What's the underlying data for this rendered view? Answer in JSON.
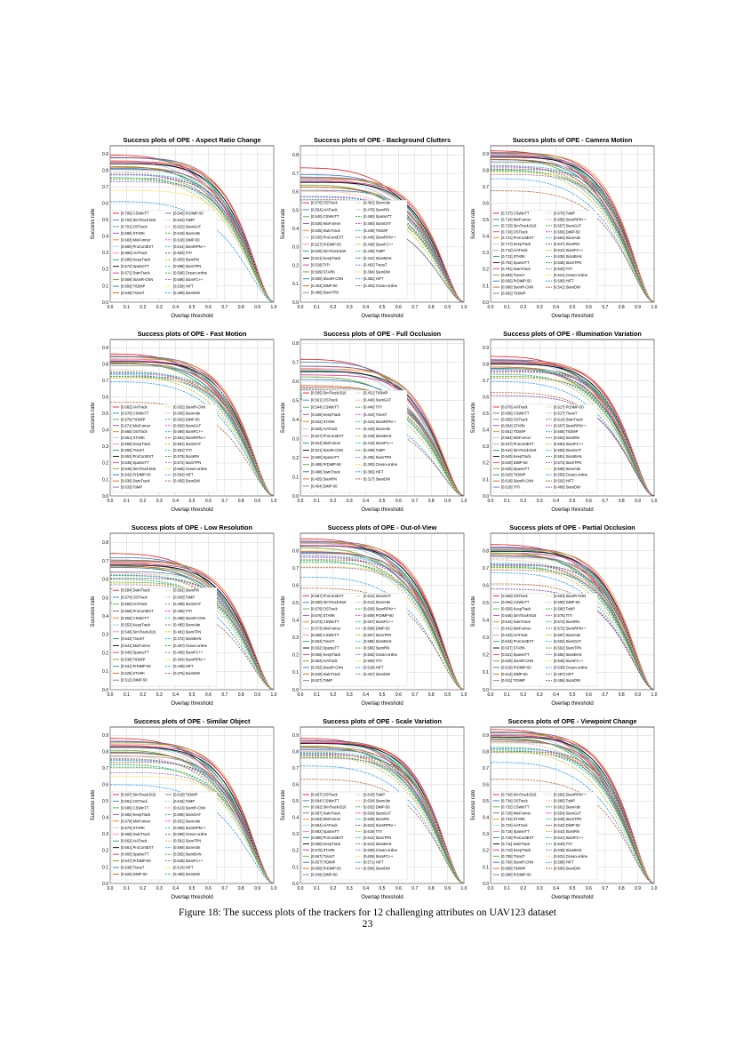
{
  "caption": "Figure 18: The success plots of the trackers for 12 challenging attributes on UAV123 dataset",
  "page_number": "23",
  "chart_data": [
    {
      "type": "line",
      "title": "Success plots of OPE - Aspect Ratio Change",
      "xlabel": "Overlap threshold",
      "ylabel": "Success rate",
      "xlim": [
        0,
        1
      ],
      "ylim": [
        0,
        0.95
      ],
      "xticks": [
        "0.0",
        "0.1",
        "0.2",
        "0.3",
        "0.4",
        "0.5",
        "0.6",
        "0.7",
        "0.8",
        "0.9",
        "1.0"
      ],
      "yticks": [
        "0.0",
        "0.1",
        "0.2",
        "0.3",
        "0.4",
        "0.5",
        "0.6",
        "0.7",
        "0.8",
        "0.9"
      ],
      "grid": true,
      "legend_position": "lower-left",
      "legend": [
        "[0.706] CSWinTT",
        "[0.702] SimTrack-B16",
        "[0.701] OSTrack",
        "[0.695] STARK",
        "[0.683] MixFormer",
        "[0.680] ProContEXT",
        "[0.680] AiATrack",
        "[0.680] KeepTrack",
        "[0.672] SparseTT",
        "[0.671] SwinTrack",
        "[0.659] SiamR-CNN",
        "[0.650] TrDiMP",
        "[0.648] TransT",
        "[0.645] PrDiMP-50",
        "[0.632] ToMP",
        "[0.622] SiamGAT",
        "[0.619] SiamAttn",
        "[0.618] DiMP-50",
        "[0.614] SiamRPN++",
        "[0.603] TrTr",
        "[0.603] SiamRN",
        "[0.598] SiamTPN",
        "[0.596] Ocean-online",
        "[0.586] SiamFC++",
        "[0.536] HiFT",
        "[0.489] SiamDW"
      ]
    },
    {
      "type": "line",
      "title": "Success plots of OPE - Background Clutters",
      "xlabel": "Overlap threshold",
      "ylabel": "Success rate",
      "xlim": [
        0,
        1
      ],
      "ylim": [
        0,
        0.85
      ],
      "xticks": [
        "0.0",
        "0.1",
        "0.2",
        "0.3",
        "0.4",
        "0.5",
        "0.6",
        "0.7",
        "0.8",
        "0.9",
        "1.0"
      ],
      "yticks": [
        "0.0",
        "0.1",
        "0.2",
        "0.3",
        "0.4",
        "0.5",
        "0.6",
        "0.7",
        "0.8"
      ],
      "grid": true,
      "legend_position": "lower-left",
      "legend": [
        "[0.576] OSTrack",
        "[0.554] AiATrack",
        "[0.540] CSWinTT",
        "[0.536] MixFormer",
        "[0.535] SwinTrack",
        "[0.530] ProContEXT",
        "[0.527] PrDiMP-50",
        "[0.525] SimTrack-B16",
        "[0.521] KeepTrack",
        "[0.518] TrTr",
        "[0.509] STARK",
        "[0.500] SiamR-CNN",
        "[0.493] DiMP-50",
        "[0.486] SiamTPN",
        "[0.481] SiamAttn",
        "[0.478] SiamRN",
        "[0.460] SparseTT",
        "[0.460] SiamGAT",
        "[0.449] TrDiMP",
        "[0.446] SiamRPN++",
        "[0.438] SiamFC++",
        "[0.436] ToMP",
        "[0.431] SiamBAN",
        "[0.402] TransT",
        "[0.384] SiamDW",
        "[0.382] HiFT",
        "[0.363] Ocean-online"
      ]
    },
    {
      "type": "line",
      "title": "Success plots of OPE - Camera Motion",
      "xlabel": "Overlap threshold",
      "ylabel": "Success rate",
      "xlim": [
        0,
        1
      ],
      "ylim": [
        0,
        0.95
      ],
      "xticks": [
        "0.0",
        "0.1",
        "0.2",
        "0.3",
        "0.4",
        "0.5",
        "0.6",
        "0.7",
        "0.8",
        "0.9",
        "1.0"
      ],
      "yticks": [
        "0.0",
        "0.1",
        "0.2",
        "0.3",
        "0.4",
        "0.5",
        "0.6",
        "0.7",
        "0.8",
        "0.9"
      ],
      "grid": true,
      "legend_position": "lower-left",
      "legend": [
        "[0.727] CSWinTT",
        "[0.724] MixFormer",
        "[0.723] SimTrack-B16",
        "[0.720] OSTrack",
        "[0.721] ProContEXT",
        "[0.717] KeepTrack",
        "[0.712] AiATrack",
        "[0.712] STARK",
        "[0.704] SparseTT",
        "[0.701] SwinTrack",
        "[0.693] TransT",
        "[0.692] PrDiMP-50",
        "[0.686] SiamR-CNN",
        "[0.682] TrDiMP",
        "[0.676] ToMP",
        "[0.658] SiamRPN++",
        "[0.657] SiamGAT",
        "[0.656] DiMP-50",
        "[0.654] SiamAttn",
        "[0.647] SiamRN",
        "[0.641] SiamFC++",
        "[0.636] SiamBAN",
        "[0.636] SiamTPN",
        "[0.620] TrTr",
        "[0.621] Ocean-online",
        "[0.600] HiFT",
        "[0.541] SiamDW"
      ]
    },
    {
      "type": "line",
      "title": "Success plots of OPE - Fast Motion",
      "xlabel": "Overlap threshold",
      "ylabel": "Success rate",
      "xlim": [
        0,
        1
      ],
      "ylim": [
        0,
        0.95
      ],
      "xticks": [
        "0.0",
        "0.1",
        "0.2",
        "0.3",
        "0.4",
        "0.5",
        "0.6",
        "0.7",
        "0.8",
        "0.9",
        "1.0"
      ],
      "yticks": [
        "0.0",
        "0.1",
        "0.2",
        "0.3",
        "0.4",
        "0.5",
        "0.6",
        "0.7",
        "0.8",
        "0.9"
      ],
      "grid": true,
      "legend_position": "lower-left",
      "legend": [
        "[0.682] AiATrack",
        "[0.676] CSWinTT",
        "[0.676] TrDiMP",
        "[0.671] MixFormer",
        "[0.665] OSTrack",
        "[0.661] STARK",
        "[0.658] KeepTrack",
        "[0.656] TransT",
        "[0.652] ProContEXT",
        "[0.648] SparseTT",
        "[0.646] SimTrack-B16",
        "[0.642] PrDiMP-50",
        "[0.636] SwinTrack",
        "[0.633] ToMP",
        "[0.632] SiamR-CNN",
        "[0.605] SiamAttn",
        "[0.602] DiMP-50",
        "[0.593] SiamGAT",
        "[0.590] SiamFC++",
        "[0.581] SiamRPN++",
        "[0.581] SiamGAT",
        "[0.581] TrTr",
        "[0.579] SiamRN",
        "[0.572] SiamTPN",
        "[0.565] Ocean-online",
        "[0.554] HiFT",
        "[0.456] SiamDW"
      ]
    },
    {
      "type": "line",
      "title": "Success plots of OPE - Full Occlusion",
      "xlabel": "Overlap threshold",
      "ylabel": "Success rate",
      "xlim": [
        0,
        1
      ],
      "ylim": [
        0,
        0.82
      ],
      "xticks": [
        "0.0",
        "0.1",
        "0.2",
        "0.3",
        "0.4",
        "0.5",
        "0.6",
        "0.7",
        "0.8",
        "0.9",
        "1.0"
      ],
      "yticks": [
        "0.0",
        "0.1",
        "0.2",
        "0.3",
        "0.4",
        "0.5",
        "0.6",
        "0.7",
        "0.8"
      ],
      "grid": true,
      "legend_position": "lower-left",
      "legend": [
        "[0.565] SimTrack-B16",
        "[0.561] OSTrack",
        "[0.544] CSWinTT",
        "[0.536] KeepTrack",
        "[0.532] STARK",
        "[0.529] AiATrack",
        "[0.527] ProContEXT",
        "[0.524] MixFormer",
        "[0.521] SiamR-CNN",
        "[0.500] SparseTT",
        "[0.499] PrDiMP-50",
        "[0.488] SwinTrack",
        "[0.455] SiamRN",
        "[0.454] DiMP-50",
        "[0.451] TrDiMP",
        "[0.449] SiamGAT",
        "[0.446] TrTr",
        "[0.444] TransT",
        "[0.424] SiamRPN++",
        "[0.420] SiamAttn",
        "[0.418] SiamBAN",
        "[0.416] SiamFC++",
        "[0.409] ToMP",
        "[0.405] SiamTPN",
        "[0.393] Ocean-online",
        "[0.356] HiFT",
        "[0.317] SiamDW"
      ]
    },
    {
      "type": "line",
      "title": "Success plots of OPE - Illumination Variation",
      "xlabel": "Overlap threshold",
      "ylabel": "Success rate",
      "xlim": [
        0,
        1
      ],
      "ylim": [
        0,
        0.95
      ],
      "xticks": [
        "0.0",
        "0.1",
        "0.2",
        "0.3",
        "0.4",
        "0.5",
        "0.6",
        "0.7",
        "0.8",
        "0.9",
        "1.0"
      ],
      "yticks": [
        "0.0",
        "0.1",
        "0.2",
        "0.3",
        "0.4",
        "0.5",
        "0.6",
        "0.7",
        "0.8",
        "0.9"
      ],
      "grid": true,
      "legend_position": "lower-left",
      "legend": [
        "[0.670] AiATrack",
        "[0.658] CSWinTT",
        "[0.655] OSTrack",
        "[0.654] STARK",
        "[0.651] TrDiMP",
        "[0.654] MixFormer",
        "[0.647] ProContEXT",
        "[0.644] SimTrack-B16",
        "[0.640] KeepTrack",
        "[0.640] DiMP-50",
        "[0.626] SparseTT",
        "[0.620] TrDiMP",
        "[0.618] SiamR-CNN",
        "[0.618] TrTr",
        "[0.617] PrDiMP-50",
        "[0.617] TransT",
        "[0.614] SwinTrack",
        "[0.607] SiamRPN++",
        "[0.606] TrDiMP",
        "[0.602] SiamRN",
        "[0.593] SiamFC++",
        "[0.583] SiamGAT",
        "[0.581] SiamBAN",
        "[0.573] SiamTPN",
        "[0.568] SiamAttn",
        "[0.555] Ocean-online",
        "[0.502] HiFT",
        "[0.480] SiamDW"
      ]
    },
    {
      "type": "line",
      "title": "Success plots of OPE - Low Resolution",
      "xlabel": "Overlap threshold",
      "ylabel": "Success rate",
      "xlim": [
        0,
        1
      ],
      "ylim": [
        0,
        0.85
      ],
      "xticks": [
        "0.0",
        "0.1",
        "0.2",
        "0.3",
        "0.4",
        "0.5",
        "0.6",
        "0.7",
        "0.8",
        "0.9",
        "1.0"
      ],
      "yticks": [
        "0.0",
        "0.1",
        "0.2",
        "0.3",
        "0.4",
        "0.5",
        "0.6",
        "0.7",
        "0.8"
      ],
      "grid": true,
      "legend_position": "lower-left",
      "legend": [
        "[0.584] SwinTrack",
        "[0.574] OSTrack",
        "[0.560] AiATrack",
        "[0.556] ProContEXT",
        "[0.556] CSWinTT",
        "[0.553] KeepTrack",
        "[0.546] SimTrack-B16",
        "[0.542] TransT",
        "[0.541] MixFormer",
        "[0.540] SparseTT",
        "[0.538] TrDiMP",
        "[0.531] PrDiMP-50",
        "[0.529] STARK",
        "[0.512] DiMP-50",
        "[0.502] SiamRN",
        "[0.500] ToMP",
        "[0.498] SiamGAT",
        "[0.496] TrTr",
        "[0.488] SiamR-CNN",
        "[0.485] SiamAttn",
        "[0.481] SiamTPN",
        "[0.472] SiamBAN",
        "[0.467] Ocean-online",
        "[0.456] SiamFC++",
        "[0.454] SiamRPN++",
        "[0.439] HiFT",
        "[0.376] SiamDW"
      ]
    },
    {
      "type": "line",
      "title": "Success plots of OPE - Out-of-View",
      "xlabel": "Overlap threshold",
      "ylabel": "Success rate",
      "xlim": [
        0,
        1
      ],
      "ylim": [
        0,
        0.9
      ],
      "xticks": [
        "0.0",
        "0.1",
        "0.2",
        "0.3",
        "0.4",
        "0.5",
        "0.6",
        "0.7",
        "0.8",
        "0.9",
        "1.0"
      ],
      "yticks": [
        "0.0",
        "0.1",
        "0.2",
        "0.3",
        "0.4",
        "0.5",
        "0.6",
        "0.7",
        "0.8"
      ],
      "grid": true,
      "legend_position": "lower-left",
      "legend": [
        "[0.687] ProContEXT",
        "[0.680] SimTrack-B16",
        "[0.679] OSTrack",
        "[0.676] STARK",
        "[0.673] CSWinTT",
        "[0.673] MixFormer",
        "[0.668] CSWinTT",
        "[0.663] TransT",
        "[0.662] SparseTT",
        "[0.656] KeepTrack",
        "[0.652] AiATrack",
        "[0.632] SiamR-CNN",
        "[0.628] SwinTrack",
        "[0.627] ToMP",
        "[0.614] SiamGAT",
        "[0.614] SiamAttn",
        "[0.609] SiamRPN++",
        "[0.609] PrDiMP-50",
        "[0.607] SiamFC++",
        "[0.598] DiMP-50",
        "[0.597] SiamTPN",
        "[0.586] SiamBAN",
        "[0.586] SiamRN",
        "[0.563] Ocean-online",
        "[0.560] TrTr",
        "[0.518] HiFT",
        "[0.467] SiamDW"
      ]
    },
    {
      "type": "line",
      "title": "Success plots of OPE - Partial Occlusion",
      "xlabel": "Overlap threshold",
      "ylabel": "Success rate",
      "xlim": [
        0,
        1
      ],
      "ylim": [
        0,
        0.9
      ],
      "xticks": [
        "0.0",
        "0.1",
        "0.2",
        "0.3",
        "0.4",
        "0.5",
        "0.6",
        "0.7",
        "0.8",
        "0.9",
        "1.0"
      ],
      "yticks": [
        "0.0",
        "0.1",
        "0.2",
        "0.3",
        "0.4",
        "0.5",
        "0.6",
        "0.7",
        "0.8"
      ],
      "grid": true,
      "legend_position": "lower-left",
      "legend": [
        "[0.660] OSTrack",
        "[0.656] CSWinTT",
        "[0.650] KeepTrack",
        "[0.646] SimTrack-B16",
        "[0.644] SwinTrack",
        "[0.641] MixFormer",
        "[0.643] AiATrack",
        "[0.643] ProContEXT",
        "[0.637] STARK",
        "[0.621] SparseTT",
        "[0.629] SiamR-CNN",
        "[0.619] PrDiMP-50",
        "[0.613] DiMP-50",
        "[0.611] TrDiMP",
        "[0.603] SiamR-CNN",
        "[0.590] DiMP-50",
        "[0.580] ToMP",
        "[0.576] TrTr",
        "[0.573] SiamRN",
        "[0.572] SiamRPN++",
        "[0.567] SiamAttn",
        "[0.563] SiamGAT",
        "[0.562] SiamTPN",
        "[0.550] SiamBAN",
        "[0.546] SiamFC++",
        "[0.538] Ocean-online",
        "[0.487] HiFT",
        "[0.456] SiamDW"
      ]
    },
    {
      "type": "line",
      "title": "Success plots of OPE - Similar Object",
      "xlabel": "Overlap threshold",
      "ylabel": "Success rate",
      "xlim": [
        0,
        1
      ],
      "ylim": [
        0,
        0.95
      ],
      "xticks": [
        "0.0",
        "0.1",
        "0.2",
        "0.3",
        "0.4",
        "0.5",
        "0.6",
        "0.7",
        "0.8",
        "0.9",
        "1.0"
      ],
      "yticks": [
        "0.0",
        "0.1",
        "0.2",
        "0.3",
        "0.4",
        "0.5",
        "0.6",
        "0.7",
        "0.8",
        "0.9"
      ],
      "grid": true,
      "legend_position": "lower-left",
      "legend": [
        "[0.697] SimTrack-B16",
        "[0.691] OSTrack",
        "[0.686] CSWinTT",
        "[0.682] KeepTrack",
        "[0.678] MixFormer",
        "[0.670] STARK",
        "[0.665] SwinTrack",
        "[0.662] AiATrack",
        "[0.661] ProContEXT",
        "[0.660] SparseTT",
        "[0.647] PrDiMP-50",
        "[0.638] TransT",
        "[0.626] DiMP-50",
        "[0.618] TrDiMP",
        "[0.616] ToMP",
        "[0.613] SiamR-CNN",
        "[0.606] SiamGAT",
        "[0.601] SiamAttn",
        "[0.590] SiamRPN++",
        "[0.589] Ocean-online",
        "[0.581] SiamTPN",
        "[0.569] SiamAttn",
        "[0.565] SiamBAN",
        "[0.538] SiamFC++",
        "[0.514] HiFT",
        "[0.480] SiamDW"
      ]
    },
    {
      "type": "line",
      "title": "Success plots of OPE - Scale Variation",
      "xlabel": "Overlap threshold",
      "ylabel": "Success rate",
      "xlim": [
        0,
        1
      ],
      "ylim": [
        0,
        0.95
      ],
      "xticks": [
        "0.0",
        "0.1",
        "0.2",
        "0.3",
        "0.4",
        "0.5",
        "0.6",
        "0.7",
        "0.8",
        "0.9",
        "1.0"
      ],
      "yticks": [
        "0.0",
        "0.1",
        "0.2",
        "0.3",
        "0.4",
        "0.5",
        "0.6",
        "0.7",
        "0.8",
        "0.9"
      ],
      "grid": true,
      "legend_position": "lower-left",
      "legend": [
        "[0.697] OSTrack",
        "[0.694] CSWinTT",
        "[0.692] SimTrack-B16",
        "[0.687] SwinTrack",
        "[0.684] MixFormer",
        "[0.684] AiATrack",
        "[0.682] SparseTT",
        "[0.680] ProContEXT",
        "[0.680] KeepTrack",
        "[0.676] STARK",
        "[0.667] TransT",
        "[0.657] TrDiMP",
        "[0.656] PrDiMP-50",
        "[0.649] DiMP-50",
        "[0.643] ToMP",
        "[0.634] SiamAttn",
        "[0.632] DiMP-50",
        "[0.629] SiamGAT",
        "[0.628] SiamRN",
        "[0.623] SiamRPN++",
        "[0.619] TrTr",
        "[0.614] SiamTPN",
        "[0.612] SiamBAN",
        "[0.609] Ocean-online",
        "[0.609] SiamFC++",
        "[0.571] HiFT",
        "[0.506] SiamDW"
      ]
    },
    {
      "type": "line",
      "title": "Success plots of OPE - Viewpoint Change",
      "xlabel": "Overlap threshold",
      "ylabel": "Success rate",
      "xlim": [
        0,
        1
      ],
      "ylim": [
        0,
        0.95
      ],
      "xticks": [
        "0.0",
        "0.1",
        "0.2",
        "0.3",
        "0.4",
        "0.5",
        "0.6",
        "0.7",
        "0.8",
        "0.9",
        "1.0"
      ],
      "yticks": [
        "0.0",
        "0.1",
        "0.2",
        "0.3",
        "0.4",
        "0.5",
        "0.6",
        "0.7",
        "0.8",
        "0.9"
      ],
      "grid": true,
      "legend_position": "lower-left",
      "legend": [
        "[0.740] SimTrack-B16",
        "[0.734] OSTrack",
        "[0.732] CSWinTT",
        "[0.728] MixFormer",
        "[0.723] STARK",
        "[0.722] AiATrack",
        "[0.718] SparseTT",
        "[0.718] ProContEXT",
        "[0.711] SwinTrack",
        "[0.710] KeepTrack",
        "[0.708] TransT",
        "[0.700] SiamR-CNN",
        "[0.689] TrDiMP",
        "[0.688] PrDiMP-50",
        "[0.682] SiamRPN++",
        "[0.680] ToMP",
        "[0.661] SiamAttn",
        "[0.654] SiamGAT",
        "[0.648] SiamTPN",
        "[0.642] DiMP-50",
        "[0.642] SiamRN",
        "[0.641] SiamFC++",
        "[0.640] TrTr",
        "[0.636] SiamBAN",
        "[0.631] Ocean-online",
        "[0.588] HiFT",
        "[0.506] SiamDW"
      ]
    }
  ]
}
